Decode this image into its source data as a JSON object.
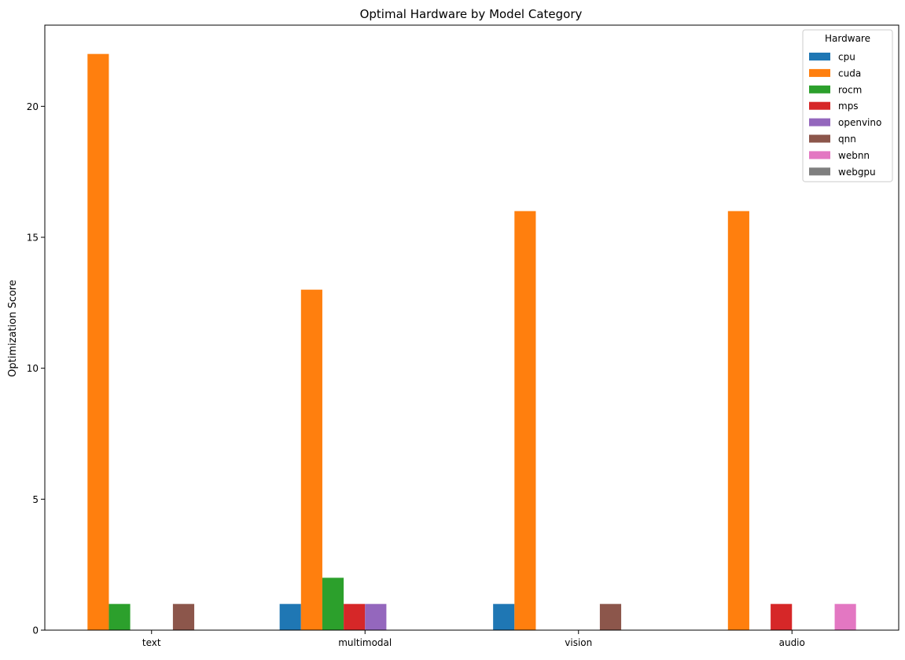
{
  "chart_data": {
    "type": "bar",
    "title": "Optimal Hardware by Model Category",
    "xlabel": "",
    "ylabel": "Optimization Score",
    "categories": [
      "text",
      "multimodal",
      "vision",
      "audio"
    ],
    "ylim": [
      0,
      23.1
    ],
    "yticks": [
      0,
      5,
      10,
      15,
      20
    ],
    "grid": false,
    "legend": {
      "title": "Hardware",
      "placement": "top-right"
    },
    "series": [
      {
        "name": "cpu",
        "color": "#1f77b4",
        "values": [
          0,
          1,
          1,
          0
        ]
      },
      {
        "name": "cuda",
        "color": "#ff7f0e",
        "values": [
          22,
          13,
          16,
          16
        ]
      },
      {
        "name": "rocm",
        "color": "#2ca02c",
        "values": [
          1,
          2,
          0,
          0
        ]
      },
      {
        "name": "mps",
        "color": "#d62728",
        "values": [
          0,
          1,
          0,
          1
        ]
      },
      {
        "name": "openvino",
        "color": "#9467bd",
        "values": [
          0,
          1,
          0,
          0
        ]
      },
      {
        "name": "qnn",
        "color": "#8c564b",
        "values": [
          1,
          0,
          1,
          0
        ]
      },
      {
        "name": "webnn",
        "color": "#e377c2",
        "values": [
          0,
          0,
          0,
          1
        ]
      },
      {
        "name": "webgpu",
        "color": "#7f7f7f",
        "values": [
          0,
          0,
          0,
          0
        ]
      }
    ]
  }
}
